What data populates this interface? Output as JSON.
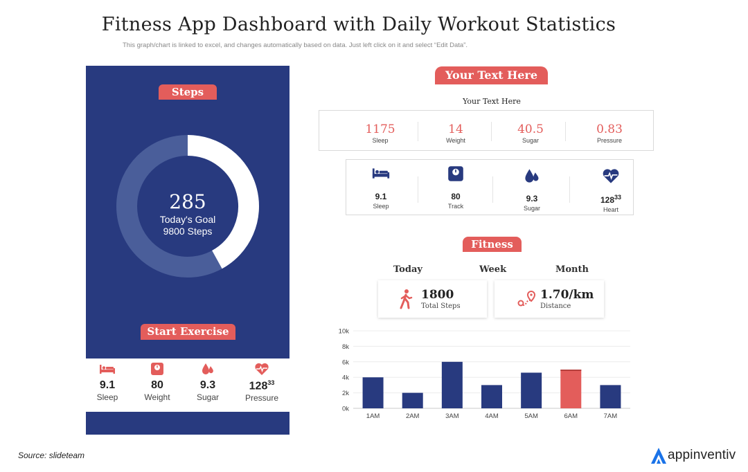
{
  "title": "Fitness App Dashboard with Daily Workout Statistics",
  "subtitle": "This graph/chart is linked to excel, and changes automatically based on data. Just left click on it and select “Edit Data”.",
  "phone": {
    "steps_label": "Steps",
    "steps_value": "285",
    "goal_line1": "Today's Goal",
    "goal_line2": "9800 Steps",
    "progress": 0.42,
    "start_label": "Start Exercise",
    "stats": [
      {
        "icon": "bed-icon",
        "value": "9.1",
        "label": "Sleep"
      },
      {
        "icon": "scale-icon",
        "value": "80",
        "label": "Weight"
      },
      {
        "icon": "drops-icon",
        "value": "9.3",
        "label": "Sugar"
      },
      {
        "icon": "heart-pulse-icon",
        "value": "128",
        "sup": "33",
        "label": "Pressure"
      }
    ]
  },
  "right": {
    "header": "Your Text Here",
    "subheader": "Your Text Here",
    "metrics": [
      {
        "value": "1175",
        "label": "Sleep"
      },
      {
        "value": "14",
        "label": "Weight"
      },
      {
        "value": "40.5",
        "label": "Sugar"
      },
      {
        "value": "0.83",
        "label": "Pressure"
      }
    ],
    "icon_stats": [
      {
        "icon": "bed-icon",
        "value": "9.1",
        "label": "Sleep"
      },
      {
        "icon": "scale-icon",
        "value": "80",
        "label": "Track"
      },
      {
        "icon": "drops-icon",
        "value": "9.3",
        "label": "Sugar"
      },
      {
        "icon": "heart-pulse-icon",
        "value": "128",
        "sup": "33",
        "label": "Heart"
      }
    ],
    "fitness_label": "Fitness",
    "periods": [
      "Today",
      "Week",
      "Month"
    ],
    "steps_card": {
      "icon": "walking-person-icon",
      "value": "1800",
      "label": "Total Steps"
    },
    "distance_card": {
      "icon": "route-pin-icon",
      "value": "1.70/km",
      "label": "Distance"
    }
  },
  "colors": {
    "navy": "#283a7f",
    "accent": "#e35d5b",
    "ring_bg": "#4a5e9a"
  },
  "chart_data": {
    "type": "bar",
    "categories": [
      "1AM",
      "2AM",
      "3AM",
      "4AM",
      "5AM",
      "6AM",
      "7AM"
    ],
    "values": [
      4000,
      2000,
      6000,
      3000,
      4600,
      5000,
      3000
    ],
    "highlight_index": 5,
    "yticks": [
      "0k",
      "2k",
      "4k",
      "6k",
      "8k",
      "10k"
    ],
    "ylim": [
      0,
      10000
    ],
    "grid": true
  },
  "footer": {
    "source": "Source: slideteam",
    "brand": "appinventiv"
  }
}
